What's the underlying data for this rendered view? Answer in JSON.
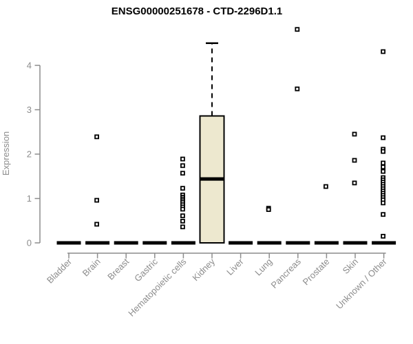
{
  "chart_data": {
    "type": "boxplot",
    "title": "ENSG00000251678 - CTD-2296D1.1",
    "ylabel": "Expression",
    "xlabel": "",
    "ylim": [
      0,
      4.81
    ],
    "yticks": [
      0,
      1,
      2,
      3,
      4
    ],
    "grid": false,
    "legend": "none",
    "categories": [
      "Bladder",
      "Brain",
      "Breast",
      "Gastric",
      "Hematopoietic cells",
      "Kidney",
      "Liver",
      "Lung",
      "Pancreas",
      "Prostate",
      "Skin",
      "Unknown / Other"
    ],
    "series": [
      {
        "category": "Bladder",
        "q1": 0,
        "median": 0,
        "q3": 0,
        "whisker_low": 0,
        "whisker_high": 0,
        "outliers": []
      },
      {
        "category": "Brain",
        "q1": 0,
        "median": 0,
        "q3": 0,
        "whisker_low": 0,
        "whisker_high": 0,
        "outliers": [
          2.39,
          0.96,
          0.42
        ]
      },
      {
        "category": "Breast",
        "q1": 0,
        "median": 0,
        "q3": 0,
        "whisker_low": 0,
        "whisker_high": 0,
        "outliers": []
      },
      {
        "category": "Gastric",
        "q1": 0,
        "median": 0,
        "q3": 0,
        "whisker_low": 0,
        "whisker_high": 0,
        "outliers": []
      },
      {
        "category": "Hematopoietic cells",
        "q1": 0,
        "median": 0,
        "q3": 0,
        "whisker_low": 0,
        "whisker_high": 0,
        "outliers": [
          1.89,
          1.74,
          1.57,
          1.23,
          1.08,
          1.03,
          0.99,
          0.95,
          0.91,
          0.86,
          0.81,
          0.76,
          0.61,
          0.49,
          0.36
        ]
      },
      {
        "category": "Kidney",
        "q1": 0,
        "median": 1.44,
        "q3": 2.86,
        "whisker_low": 0,
        "whisker_high": 4.5,
        "outliers": []
      },
      {
        "category": "Liver",
        "q1": 0,
        "median": 0,
        "q3": 0,
        "whisker_low": 0,
        "whisker_high": 0,
        "outliers": []
      },
      {
        "category": "Lung",
        "q1": 0,
        "median": 0,
        "q3": 0,
        "whisker_low": 0,
        "whisker_high": 0,
        "outliers": [
          0.78,
          0.75
        ]
      },
      {
        "category": "Pancreas",
        "q1": 0,
        "median": 0,
        "q3": 0,
        "whisker_low": 0,
        "whisker_high": 0,
        "outliers": [
          4.81,
          3.47
        ]
      },
      {
        "category": "Prostate",
        "q1": 0,
        "median": 0,
        "q3": 0,
        "whisker_low": 0,
        "whisker_high": 0,
        "outliers": [
          1.27
        ]
      },
      {
        "category": "Skin",
        "q1": 0,
        "median": 0,
        "q3": 0,
        "whisker_low": 0,
        "whisker_high": 0,
        "outliers": [
          2.45,
          1.86,
          1.35
        ]
      },
      {
        "category": "Unknown / Other",
        "q1": 0,
        "median": 0,
        "q3": 0,
        "whisker_low": 0,
        "whisker_high": 0,
        "outliers": [
          4.31,
          2.37,
          2.11,
          2.06,
          1.8,
          1.71,
          1.61,
          1.47,
          1.42,
          1.37,
          1.32,
          1.27,
          1.22,
          1.17,
          1.12,
          1.07,
          1.02,
          0.97,
          0.9,
          0.64,
          0.15
        ]
      }
    ],
    "colors": {
      "box_fill": "#EDE8CF",
      "box_border": "#000000",
      "median": "#000000",
      "collapsed_bar": "#000000",
      "outlier_stroke": "#000000",
      "outlier_fill": "#ffffff",
      "axis": "#8c8c8c",
      "tick_text": "#8c8c8c",
      "title_text": "#000000",
      "background": "#ffffff"
    }
  }
}
